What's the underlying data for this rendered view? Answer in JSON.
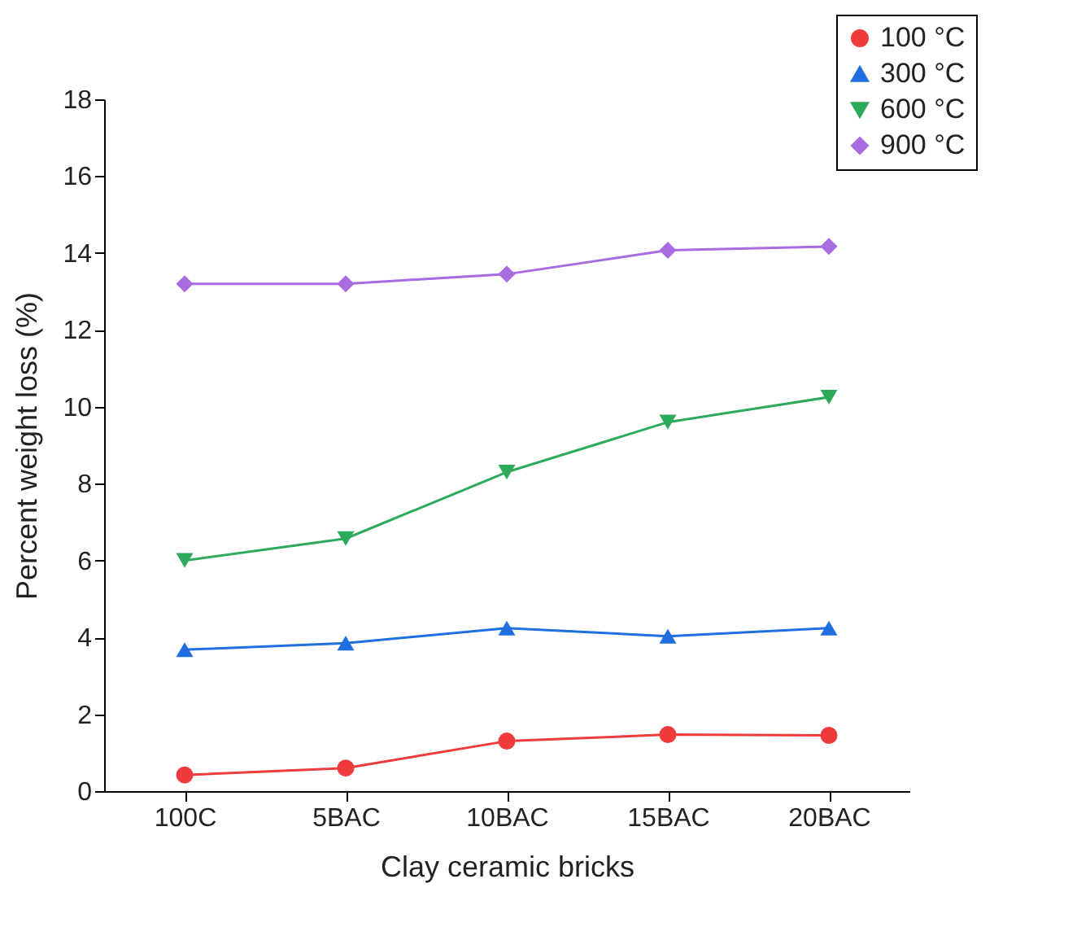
{
  "chart_data": {
    "type": "line",
    "xlabel": "Clay ceramic bricks",
    "ylabel": "Percent weight loss (%)",
    "categories": [
      "100C",
      "5BAC",
      "10BAC",
      "15BAC",
      "20BAC"
    ],
    "series": [
      {
        "name": "100 °C",
        "color": "#ef3b3b",
        "marker": "circle",
        "values": [
          0.42,
          0.6,
          1.3,
          1.47,
          1.45
        ]
      },
      {
        "name": "300 °C",
        "color": "#1f6fe0",
        "marker": "triangle",
        "values": [
          3.68,
          3.85,
          4.24,
          4.03,
          4.24
        ]
      },
      {
        "name": "600 °C",
        "color": "#2eaa5c",
        "marker": "triangle-down",
        "values": [
          6.0,
          6.57,
          8.3,
          9.6,
          10.25
        ]
      },
      {
        "name": "900 °C",
        "color": "#a86be0",
        "marker": "diamond",
        "values": [
          13.2,
          13.2,
          13.45,
          14.07,
          14.17
        ]
      }
    ],
    "ylim": [
      0,
      18
    ],
    "yticks": [
      0,
      2,
      4,
      6,
      8,
      10,
      12,
      14,
      16,
      18
    ],
    "grid": false,
    "legend": "top right",
    "line_style": "solid"
  }
}
